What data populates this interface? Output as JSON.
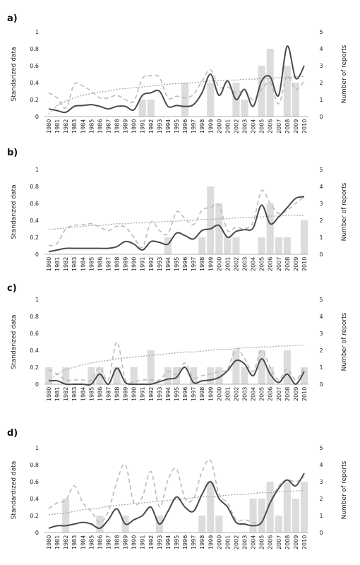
{
  "chart_data": [
    {
      "type": "bar",
      "panel_label": "a)",
      "categories": [
        "1980",
        "1981",
        "1982",
        "1983",
        "1984",
        "1985",
        "1986",
        "1987",
        "1988",
        "1989",
        "1990",
        "1991",
        "1992",
        "1993",
        "1994",
        "1995",
        "1996",
        "1997",
        "1998",
        "1999",
        "2000",
        "2001",
        "2002",
        "2003",
        "2004",
        "2005",
        "2006",
        "2007",
        "2008",
        "2009",
        "2010"
      ],
      "ylabel_left": "Standarized data",
      "ylabel_right": "Number of reports",
      "ylim_left": [
        0,
        1
      ],
      "ylim_right": [
        0,
        5
      ],
      "yticks_left": [
        "0",
        "0.2",
        "0.4",
        "0.6",
        "0.8",
        "1"
      ],
      "yticks_right": [
        "0",
        "1",
        "2",
        "3",
        "4",
        "5"
      ],
      "series": [
        {
          "kind": "bar",
          "axis": "right",
          "values": [
            0,
            0,
            0,
            0,
            0,
            0,
            0,
            0,
            0,
            0,
            0,
            1,
            1,
            0,
            0,
            0,
            2,
            0,
            0,
            2,
            0,
            0,
            2,
            1,
            0,
            3,
            4,
            0,
            3,
            2,
            0
          ]
        },
        {
          "kind": "line",
          "axis": "left",
          "values": [
            0.09,
            0.07,
            0.05,
            0.12,
            0.13,
            0.14,
            0.12,
            0.09,
            0.12,
            0.12,
            0.08,
            0.25,
            0.28,
            0.3,
            0.12,
            0.13,
            0.12,
            0.14,
            0.28,
            0.5,
            0.25,
            0.42,
            0.2,
            0.32,
            0.12,
            0.42,
            0.47,
            0.25,
            0.83,
            0.45,
            0.6
          ]
        },
        {
          "kind": "dashed",
          "axis": "left",
          "values": [
            0.28,
            0.22,
            0.1,
            0.38,
            0.36,
            0.3,
            0.22,
            0.22,
            0.25,
            0.2,
            0.18,
            0.45,
            0.48,
            0.46,
            0.22,
            0.24,
            0.22,
            0.26,
            0.42,
            0.55,
            0.35,
            0.35,
            0.28,
            0.3,
            0.2,
            0.32,
            0.4,
            0.15,
            0.48,
            0.32,
            0.42
          ]
        },
        {
          "kind": "trend",
          "axis": "left",
          "values": [
            0.03,
            0.13,
            0.18,
            0.22,
            0.25,
            0.27,
            0.29,
            0.3,
            0.32,
            0.33,
            0.34,
            0.35,
            0.36,
            0.37,
            0.38,
            0.39,
            0.39,
            0.4,
            0.41,
            0.42,
            0.42,
            0.43,
            0.43,
            0.44,
            0.44,
            0.45,
            0.45,
            0.46,
            0.46,
            0.47,
            0.47
          ]
        }
      ]
    },
    {
      "type": "bar",
      "panel_label": "b)",
      "categories": [
        "1980",
        "1981",
        "1982",
        "1983",
        "1984",
        "1985",
        "1986",
        "1987",
        "1988",
        "1989",
        "1990",
        "1991",
        "1992",
        "1993",
        "1994",
        "1995",
        "1996",
        "1997",
        "1998",
        "1999",
        "2000",
        "2001",
        "2002",
        "2003",
        "2004",
        "2005",
        "2006",
        "2007",
        "2008",
        "2009",
        "2010"
      ],
      "ylabel_left": "Standarized data",
      "ylabel_right": "Number of reports",
      "ylim_left": [
        0,
        1
      ],
      "ylim_right": [
        0,
        5
      ],
      "yticks_left": [
        "0",
        "0.2",
        "0.4",
        "0.6",
        "0.8",
        "1"
      ],
      "yticks_right": [
        "0",
        "1",
        "2",
        "3",
        "4",
        "5"
      ],
      "series": [
        {
          "kind": "bar",
          "axis": "right",
          "values": [
            0,
            0,
            0,
            0,
            0,
            0,
            0,
            0,
            0,
            0,
            0,
            0,
            0,
            0,
            1,
            0,
            0,
            0,
            1,
            4,
            3,
            1,
            1,
            0,
            0,
            1,
            3,
            1,
            1,
            0,
            2
          ]
        },
        {
          "kind": "line",
          "axis": "left",
          "values": [
            0.03,
            0.05,
            0.07,
            0.07,
            0.07,
            0.07,
            0.07,
            0.07,
            0.09,
            0.15,
            0.12,
            0.05,
            0.15,
            0.14,
            0.12,
            0.25,
            0.22,
            0.18,
            0.28,
            0.3,
            0.34,
            0.2,
            0.27,
            0.29,
            0.31,
            0.58,
            0.36,
            0.44,
            0.55,
            0.66,
            0.68
          ]
        },
        {
          "kind": "dashed",
          "axis": "left",
          "values": [
            0.1,
            0.13,
            0.3,
            0.34,
            0.35,
            0.36,
            0.32,
            0.28,
            0.33,
            0.32,
            0.2,
            0.08,
            0.38,
            0.28,
            0.24,
            0.5,
            0.42,
            0.35,
            0.52,
            0.55,
            0.58,
            0.28,
            0.32,
            0.3,
            0.38,
            0.75,
            0.6,
            0.48,
            0.52,
            0.6,
            0.68
          ]
        },
        {
          "kind": "trend",
          "axis": "left",
          "values": [
            0.29,
            0.3,
            0.31,
            0.32,
            0.33,
            0.34,
            0.34,
            0.35,
            0.36,
            0.36,
            0.37,
            0.37,
            0.38,
            0.38,
            0.39,
            0.39,
            0.4,
            0.4,
            0.41,
            0.41,
            0.42,
            0.42,
            0.43,
            0.43,
            0.44,
            0.44,
            0.45,
            0.45,
            0.46,
            0.46,
            0.46
          ]
        }
      ]
    },
    {
      "type": "bar",
      "panel_label": "c)",
      "categories": [
        "1980",
        "1981",
        "1982",
        "1983",
        "1984",
        "1985",
        "1986",
        "1987",
        "1988",
        "1989",
        "1990",
        "1991",
        "1992",
        "1993",
        "1994",
        "1995",
        "1996",
        "1997",
        "1998",
        "1999",
        "2000",
        "2001",
        "2002",
        "2003",
        "2004",
        "2005",
        "2006",
        "2007",
        "2008",
        "2009",
        "2010"
      ],
      "ylabel_left": "Standarized data",
      "ylabel_right": "Number of reports",
      "ylim_left": [
        0,
        1
      ],
      "ylim_right": [
        0,
        5
      ],
      "yticks_left": [
        "0",
        "0.2",
        "0.4",
        "0.6",
        "0.8",
        "1"
      ],
      "yticks_right": [
        "0",
        "1",
        "2",
        "3",
        "4",
        "5"
      ],
      "series": [
        {
          "kind": "bar",
          "axis": "right",
          "values": [
            1,
            0,
            1,
            0,
            0,
            1,
            1,
            0,
            1,
            0,
            1,
            0,
            2,
            0,
            1,
            1,
            0,
            1,
            0,
            1,
            1,
            0,
            2,
            1,
            0,
            2,
            1,
            0,
            2,
            0,
            1
          ]
        },
        {
          "kind": "line",
          "axis": "left",
          "values": [
            0.04,
            0.04,
            0.0,
            0.0,
            0.0,
            0.0,
            0.12,
            0.0,
            0.19,
            0.02,
            0.0,
            0.0,
            0.0,
            0.03,
            0.06,
            0.08,
            0.2,
            0.02,
            0.04,
            0.05,
            0.08,
            0.16,
            0.28,
            0.24,
            0.1,
            0.3,
            0.12,
            0.02,
            0.12,
            0.0,
            0.15
          ]
        },
        {
          "kind": "dashed",
          "axis": "left",
          "values": [
            0.17,
            0.12,
            0.05,
            0.05,
            0.05,
            0.05,
            0.2,
            0.05,
            0.5,
            0.05,
            0.03,
            0.05,
            0.05,
            0.05,
            0.15,
            0.12,
            0.25,
            0.08,
            0.1,
            0.12,
            0.15,
            0.18,
            0.42,
            0.3,
            0.15,
            0.4,
            0.2,
            0.05,
            0.18,
            0.05,
            0.2
          ]
        },
        {
          "kind": "trend",
          "axis": "left",
          "values": [
            0.05,
            0.12,
            0.17,
            0.2,
            0.23,
            0.25,
            0.27,
            0.28,
            0.3,
            0.31,
            0.32,
            0.33,
            0.34,
            0.35,
            0.36,
            0.37,
            0.38,
            0.38,
            0.39,
            0.4,
            0.41,
            0.41,
            0.42,
            0.43,
            0.43,
            0.44,
            0.44,
            0.45,
            0.45,
            0.46,
            0.46
          ]
        }
      ]
    },
    {
      "type": "bar",
      "panel_label": "d)",
      "categories": [
        "1980",
        "1981",
        "1982",
        "1983",
        "1984",
        "1985",
        "1986",
        "1987",
        "1988",
        "1989",
        "1990",
        "1991",
        "1992",
        "1993",
        "1994",
        "1995",
        "1996",
        "1997",
        "1998",
        "1999",
        "2000",
        "2001",
        "2002",
        "2003",
        "2004",
        "2005",
        "2006",
        "2007",
        "2008",
        "2009",
        "2010"
      ],
      "ylabel_left": "Standardized data",
      "ylabel_right": "Number of reports",
      "ylim_left": [
        0,
        1
      ],
      "ylim_right": [
        0,
        5
      ],
      "yticks_left": [
        "0",
        "0.2",
        "0.4",
        "0.6",
        "0.8",
        "1"
      ],
      "yticks_right": [
        "0",
        "1",
        "2",
        "3",
        "4",
        "5"
      ],
      "series": [
        {
          "kind": "bar",
          "axis": "right",
          "values": [
            0,
            0,
            2,
            0,
            0,
            0,
            1,
            0,
            0,
            1,
            0,
            0,
            0,
            1,
            0,
            0,
            0,
            0,
            1,
            3,
            1,
            0,
            0,
            0,
            2,
            2,
            3,
            1,
            3,
            2,
            3
          ]
        },
        {
          "kind": "line",
          "axis": "left",
          "values": [
            0.05,
            0.08,
            0.08,
            0.1,
            0.12,
            0.1,
            0.05,
            0.15,
            0.28,
            0.1,
            0.15,
            0.2,
            0.3,
            0.1,
            0.25,
            0.42,
            0.3,
            0.25,
            0.45,
            0.6,
            0.4,
            0.3,
            0.12,
            0.1,
            0.08,
            0.12,
            0.35,
            0.52,
            0.62,
            0.55,
            0.7
          ]
        },
        {
          "kind": "dashed",
          "axis": "left",
          "values": [
            0.28,
            0.35,
            0.38,
            0.55,
            0.35,
            0.25,
            0.12,
            0.25,
            0.6,
            0.8,
            0.35,
            0.42,
            0.72,
            0.3,
            0.62,
            0.75,
            0.4,
            0.4,
            0.72,
            0.85,
            0.45,
            0.35,
            0.15,
            0.15,
            0.12,
            0.12,
            0.35,
            0.55,
            0.62,
            0.6,
            0.65
          ]
        },
        {
          "kind": "trend",
          "axis": "left",
          "values": [
            0.21,
            0.22,
            0.23,
            0.25,
            0.27,
            0.28,
            0.29,
            0.31,
            0.32,
            0.33,
            0.34,
            0.35,
            0.36,
            0.37,
            0.38,
            0.39,
            0.4,
            0.41,
            0.42,
            0.42,
            0.43,
            0.44,
            0.45,
            0.45,
            0.46,
            0.47,
            0.47,
            0.48,
            0.48,
            0.49,
            0.5
          ]
        }
      ]
    }
  ]
}
